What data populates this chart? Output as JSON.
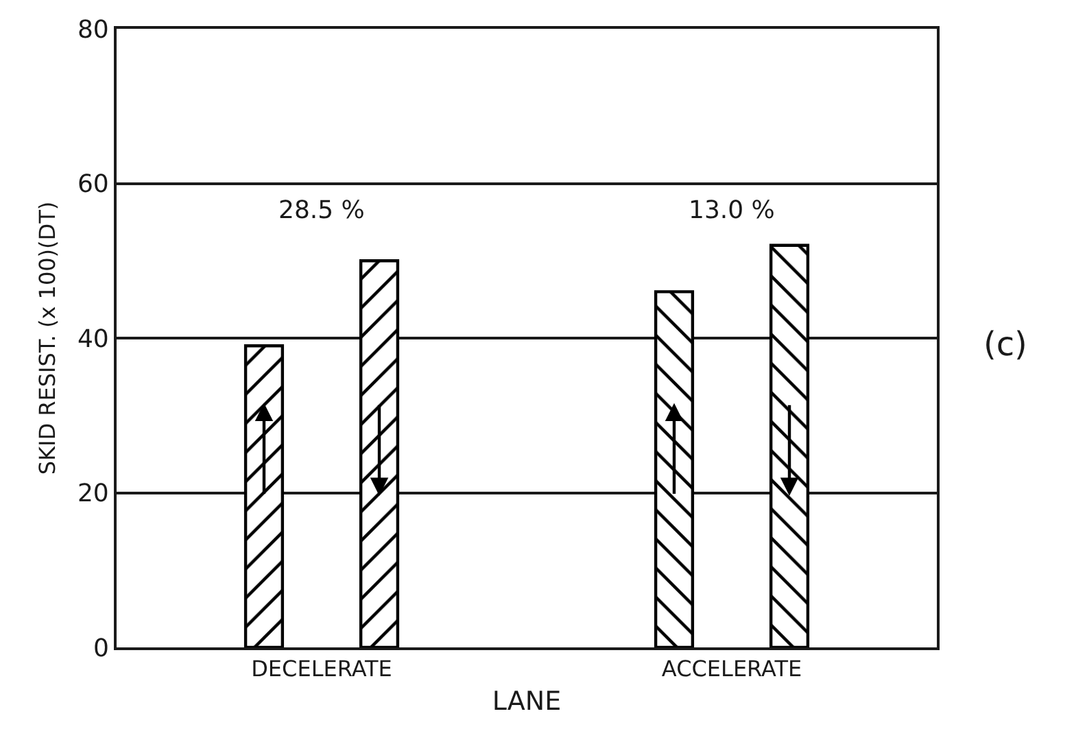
{
  "chart_data": {
    "type": "bar",
    "xlabel": "LANE",
    "ylabel": "SKID RESIST. (x 100)(DT)",
    "categories": [
      "DECELERATE",
      "ACCELERATE"
    ],
    "series": [
      {
        "color": "#000000",
        "values": [
          39,
          46
        ]
      },
      {
        "color": "#000000",
        "values": [
          50,
          52
        ]
      }
    ],
    "ylim": [
      0,
      80
    ],
    "yticks": [
      0,
      20,
      40,
      60,
      80
    ],
    "grid": "y",
    "annotations": [
      "28.5 %",
      "13.0 %",
      "(c)"
    ]
  }
}
